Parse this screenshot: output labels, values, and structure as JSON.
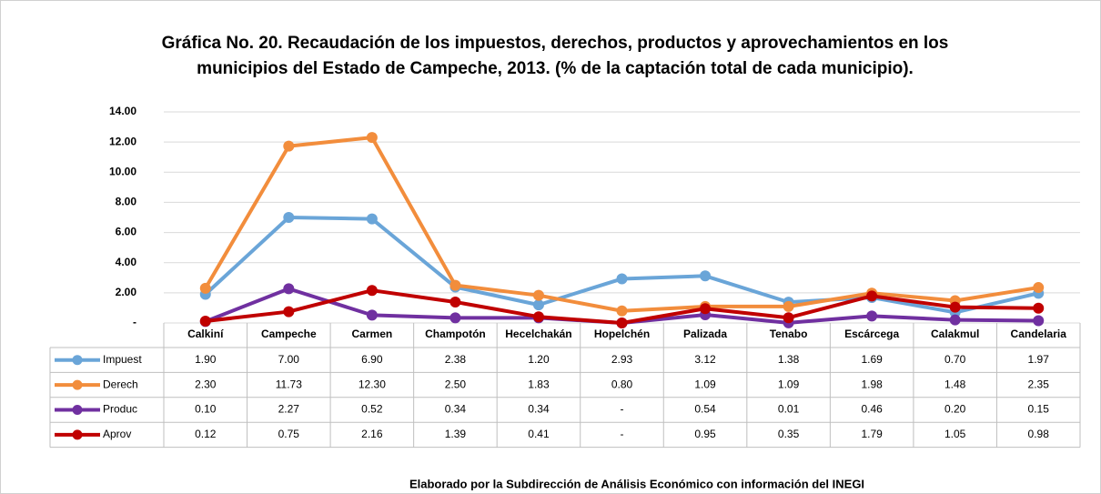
{
  "chart_data": {
    "type": "line",
    "title": [
      "Gráfica No. 20. Recaudación  de los impuestos, derechos, productos y aprovechamientos en los",
      "municipios del Estado de Campeche, 2013. (% de la captación total de cada municipio)."
    ],
    "footnote": "Elaborado por la Subdirección de Análisis Económico con información del INEGI",
    "categories": [
      "Calkiní",
      "Campeche",
      "Carmen",
      "Champotón",
      "Hecelchakán",
      "Hopelchén",
      "Palizada",
      "Tenabo",
      "Escárcega",
      "Calakmul",
      "Candelaria"
    ],
    "series": [
      {
        "name": "Impuest",
        "color": "#6aa5d8",
        "values": [
          1.9,
          7.0,
          6.9,
          2.38,
          1.2,
          2.93,
          3.12,
          1.38,
          1.69,
          0.7,
          1.97
        ],
        "value_labels": [
          "1.90",
          "7.00",
          "6.90",
          "2.38",
          "1.20",
          "2.93",
          "3.12",
          "1.38",
          "1.69",
          "0.70",
          "1.97"
        ]
      },
      {
        "name": "Derech",
        "color": "#f28d3c",
        "values": [
          2.3,
          11.73,
          12.3,
          2.5,
          1.83,
          0.8,
          1.09,
          1.09,
          1.98,
          1.48,
          2.35
        ],
        "value_labels": [
          "2.30",
          "11.73",
          "12.30",
          "2.50",
          "1.83",
          "0.80",
          "1.09",
          "1.09",
          "1.98",
          "1.48",
          "2.35"
        ]
      },
      {
        "name": "Produc",
        "color": "#7030a0",
        "values": [
          0.1,
          2.27,
          0.52,
          0.34,
          0.34,
          0,
          0.54,
          0.01,
          0.46,
          0.2,
          0.15
        ],
        "value_labels": [
          "0.10",
          "2.27",
          "0.52",
          "0.34",
          "0.34",
          "-",
          "0.54",
          "0.01",
          "0.46",
          "0.20",
          "0.15"
        ]
      },
      {
        "name": "Aprov",
        "color": "#c00000",
        "values": [
          0.12,
          0.75,
          2.16,
          1.39,
          0.41,
          0,
          0.95,
          0.35,
          1.79,
          1.05,
          0.98
        ],
        "value_labels": [
          "0.12",
          "0.75",
          "2.16",
          "1.39",
          "0.41",
          "-",
          "0.95",
          "0.35",
          "1.79",
          "1.05",
          "0.98"
        ]
      }
    ],
    "ylim": [
      0,
      14
    ],
    "yticks": [
      {
        "value": 0,
        "label": "-"
      },
      {
        "value": 2,
        "label": "2.00"
      },
      {
        "value": 4,
        "label": "4.00"
      },
      {
        "value": 6,
        "label": "6.00"
      },
      {
        "value": 8,
        "label": "8.00"
      },
      {
        "value": 10,
        "label": "10.00"
      },
      {
        "value": 12,
        "label": "12.00"
      },
      {
        "value": 14,
        "label": "14.00"
      }
    ],
    "grid": true
  }
}
